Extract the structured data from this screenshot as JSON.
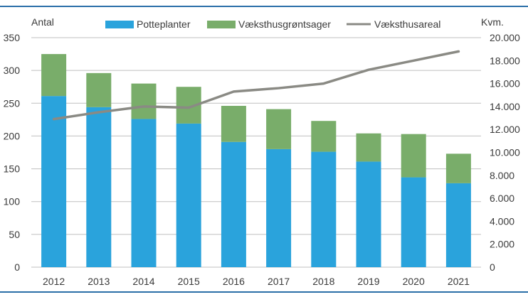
{
  "colors": {
    "potteplanter": "#2aa3dc",
    "vaeksthusgroentsager": "#79ad6a",
    "vaeksthusareal": "#8a8a84",
    "gridline": "#bfbfbf",
    "frame_rule": "#2b6fa8"
  },
  "chart_data": {
    "type": "bar",
    "stacked": true,
    "categories": [
      "2012",
      "2013",
      "2014",
      "2015",
      "2016",
      "2017",
      "2018",
      "2019",
      "2020",
      "2021"
    ],
    "series": [
      {
        "name": "Potteplanter",
        "type": "bar",
        "axis": "left",
        "values": [
          261,
          244,
          226,
          219,
          191,
          180,
          176,
          161,
          137,
          128
        ]
      },
      {
        "name": "Væksthusgrøntsager",
        "type": "bar",
        "axis": "left",
        "values": [
          64,
          52,
          54,
          56,
          55,
          61,
          47,
          43,
          66,
          45
        ]
      },
      {
        "name": "Væksthusareal",
        "type": "line",
        "axis": "right",
        "values": [
          12900,
          13500,
          14000,
          13900,
          15300,
          15600,
          16000,
          17200,
          18000,
          18800
        ]
      }
    ],
    "y_left": {
      "label": "Antal",
      "min": 0,
      "max": 350,
      "ticks": [
        "0",
        "50",
        "100",
        "150",
        "200",
        "250",
        "300",
        "350"
      ]
    },
    "y_right": {
      "label": "Kvm.",
      "min": 0,
      "max": 20000,
      "ticks": [
        "0",
        "2.000",
        "4.000",
        "6.000",
        "8.000",
        "10.000",
        "12.000",
        "14.000",
        "16.000",
        "18.000",
        "20.000"
      ]
    },
    "grid": true,
    "legend_position": "top"
  }
}
